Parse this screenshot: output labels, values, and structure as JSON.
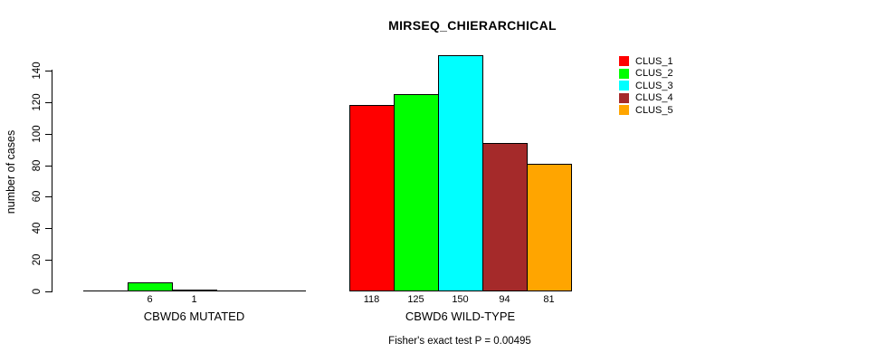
{
  "chart_data": {
    "type": "bar",
    "title": "MIRSEQ_CHIERARCHICAL",
    "ylabel": "number of cases",
    "xlabel": "",
    "ylim": [
      0,
      150
    ],
    "yticks": [
      0,
      20,
      40,
      60,
      80,
      100,
      120,
      140
    ],
    "grid": false,
    "legend_position": "top-right",
    "series": [
      {
        "name": "CLUS_1",
        "color": "#FF0000"
      },
      {
        "name": "CLUS_2",
        "color": "#00FF00"
      },
      {
        "name": "CLUS_3",
        "color": "#00FFFF"
      },
      {
        "name": "CLUS_4",
        "color": "#A52A2A"
      },
      {
        "name": "CLUS_5",
        "color": "#FFA500"
      }
    ],
    "groups": [
      {
        "label": "CBWD6 MUTATED",
        "values": [
          0,
          6,
          1,
          0,
          0
        ],
        "value_labels": [
          "",
          "6",
          "1",
          "",
          ""
        ]
      },
      {
        "label": "CBWD6 WILD-TYPE",
        "values": [
          118,
          125,
          150,
          94,
          81
        ],
        "value_labels": [
          "118",
          "125",
          "150",
          "94",
          "81"
        ]
      }
    ],
    "annotation": "Fisher's exact test P = 0.00495"
  }
}
